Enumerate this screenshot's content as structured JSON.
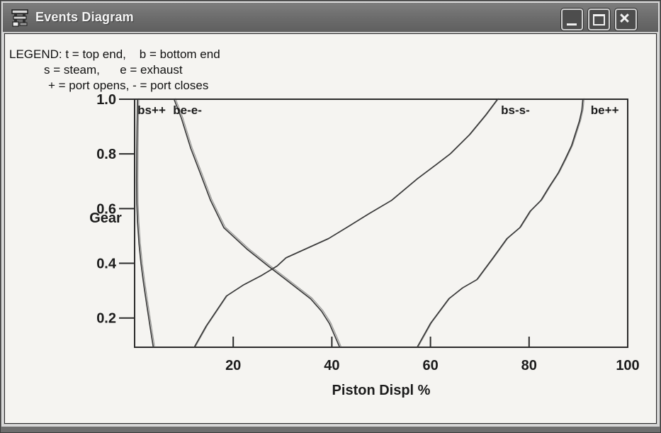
{
  "window": {
    "title": "Events Diagram",
    "buttons": [
      {
        "icon": "minimize-icon"
      },
      {
        "icon": "maximize-icon"
      },
      {
        "icon": "close-icon"
      }
    ]
  },
  "legend": {
    "line1": "LEGEND: t = top end,    b = bottom end",
    "line2": "s = steam,      e = exhaust",
    "line3": "+ = port opens, - = port closes"
  },
  "colors": {
    "curve": "#3b3b3b",
    "axis": "#2b2b2b",
    "titlebar": "#6b6b6b",
    "client_bg": "#f5f4f1"
  },
  "chart_data": {
    "type": "line",
    "title": "",
    "xlabel": "Piston Displ %",
    "ylabel": "Gear",
    "xlim": [
      0,
      100
    ],
    "ylim": [
      0.093,
      1.0
    ],
    "xticks": [
      20,
      40,
      60,
      80,
      100
    ],
    "yticks": [
      0.2,
      0.4,
      0.6,
      0.8,
      1.0
    ],
    "grid": false,
    "legend_position": "none",
    "label_gear": 0.946,
    "curve_labels": [
      {
        "text": "bs++",
        "x_pct": 0.6
      },
      {
        "text": "be-e-",
        "x_pct": 7.8
      },
      {
        "text": "bs-s-",
        "x_pct": 74.3
      },
      {
        "text": "be++",
        "x_pct": 92.5
      }
    ],
    "series": [
      {
        "name": "bs+",
        "top_label": "bs++",
        "points": [
          [
            0.6,
            1.0
          ],
          [
            0.5,
            0.9
          ],
          [
            0.45,
            0.8
          ],
          [
            0.4,
            0.7
          ],
          [
            0.45,
            0.62
          ],
          [
            0.6,
            0.55
          ],
          [
            0.9,
            0.47
          ],
          [
            1.3,
            0.4
          ],
          [
            1.8,
            0.33
          ],
          [
            2.2,
            0.28
          ],
          [
            2.7,
            0.22
          ],
          [
            3.2,
            0.16
          ],
          [
            3.8,
            0.093
          ]
        ]
      },
      {
        "name": "be-",
        "top_label": "be-e-",
        "points": [
          [
            8.0,
            1.0
          ],
          [
            9.5,
            0.93
          ],
          [
            11.4,
            0.82
          ],
          [
            13.3,
            0.73
          ],
          [
            15.4,
            0.63
          ],
          [
            18.1,
            0.53
          ],
          [
            20.5,
            0.49
          ],
          [
            22.9,
            0.45
          ],
          [
            27.1,
            0.39
          ],
          [
            30.7,
            0.34
          ],
          [
            35.7,
            0.27
          ],
          [
            37.9,
            0.225
          ],
          [
            39.5,
            0.18
          ],
          [
            40.7,
            0.13
          ],
          [
            41.6,
            0.093
          ]
        ]
      },
      {
        "name": "bs-",
        "top_label": "bs-s-",
        "points": [
          [
            12.1,
            0.093
          ],
          [
            14.5,
            0.17
          ],
          [
            18.6,
            0.28
          ],
          [
            22.0,
            0.32
          ],
          [
            25.7,
            0.355
          ],
          [
            28.9,
            0.39
          ],
          [
            30.7,
            0.42
          ],
          [
            35.0,
            0.455
          ],
          [
            39.3,
            0.49
          ],
          [
            43.4,
            0.535
          ],
          [
            47.4,
            0.58
          ],
          [
            52.1,
            0.63
          ],
          [
            57.4,
            0.71
          ],
          [
            61.1,
            0.76
          ],
          [
            64.0,
            0.8
          ],
          [
            67.9,
            0.87
          ],
          [
            71.1,
            0.94
          ],
          [
            73.6,
            1.0
          ]
        ]
      },
      {
        "name": "be+",
        "top_label": "be++",
        "points": [
          [
            57.3,
            0.093
          ],
          [
            60.0,
            0.18
          ],
          [
            63.7,
            0.27
          ],
          [
            66.5,
            0.31
          ],
          [
            69.4,
            0.34
          ],
          [
            72.7,
            0.42
          ],
          [
            75.5,
            0.49
          ],
          [
            78.1,
            0.53
          ],
          [
            80.2,
            0.59
          ],
          [
            82.4,
            0.63
          ],
          [
            84.1,
            0.68
          ],
          [
            85.9,
            0.73
          ],
          [
            87.3,
            0.78
          ],
          [
            88.6,
            0.83
          ],
          [
            89.5,
            0.88
          ],
          [
            90.2,
            0.92
          ],
          [
            90.7,
            0.96
          ],
          [
            90.9,
            1.0
          ]
        ]
      }
    ]
  }
}
